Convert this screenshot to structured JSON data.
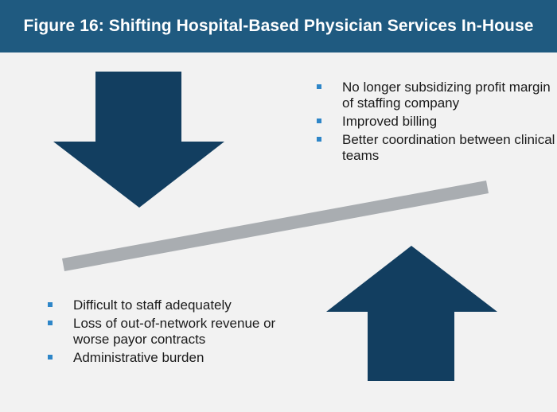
{
  "title": "Figure 16: Shifting Hospital-Based Physician Services In-House",
  "benefits": [
    {
      "text": "No longer subsidizing profit margin of staffing company"
    },
    {
      "text": "Improved billing"
    },
    {
      "text": "Better coordination between clinical teams"
    }
  ],
  "drawbacks": [
    {
      "text": "Difficult to staff adequately"
    },
    {
      "text": "Loss of out-of-network revenue or worse payor contracts"
    },
    {
      "text": "Administrative burden"
    }
  ],
  "colors": {
    "header": "#1f5a80",
    "arrow": "#123e60",
    "beam": "#a9adb1",
    "bullet": "#2e86c8",
    "background": "#f2f2f2"
  }
}
